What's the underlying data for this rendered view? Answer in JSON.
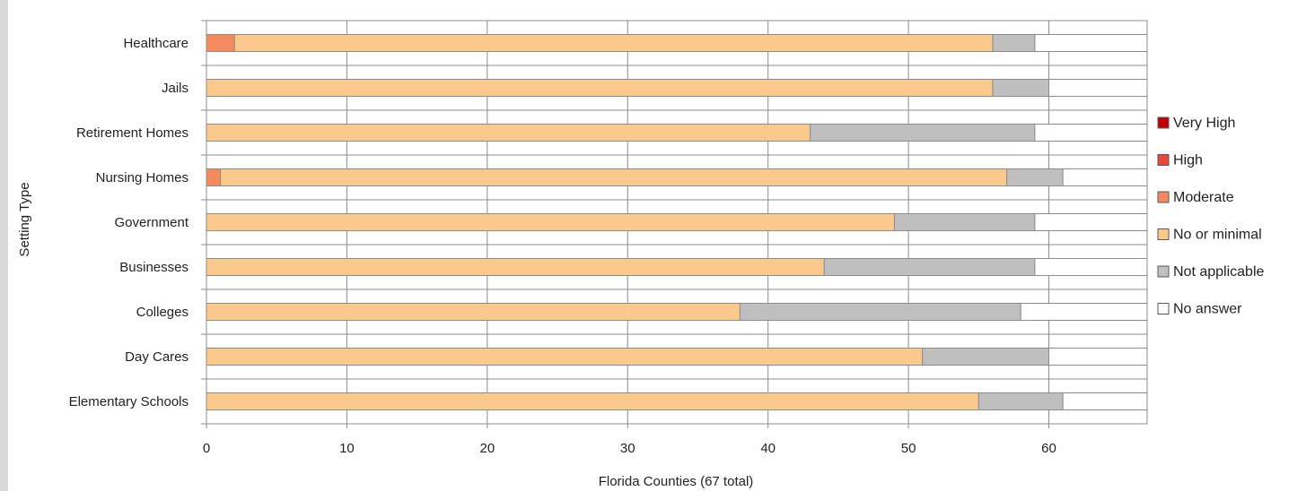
{
  "chart_data": {
    "type": "bar",
    "orientation": "horizontal",
    "stacked": true,
    "categories": [
      "Healthcare",
      "Jails",
      "Retirement Homes",
      "Nursing Homes",
      "Government",
      "Businesses",
      "Colleges",
      "Day Cares",
      "Elementary Schools"
    ],
    "series": [
      {
        "name": "Very High",
        "color": "#c00000",
        "values": [
          0,
          0,
          0,
          0,
          0,
          0,
          0,
          0,
          0
        ]
      },
      {
        "name": "High",
        "color": "#e8473a",
        "values": [
          0,
          0,
          0,
          0,
          0,
          0,
          0,
          0,
          0
        ]
      },
      {
        "name": "Moderate",
        "color": "#f58b5d",
        "values": [
          2,
          0,
          0,
          1,
          0,
          0,
          0,
          0,
          0
        ]
      },
      {
        "name": "No or minimal",
        "color": "#fbc98c",
        "values": [
          54,
          56,
          43,
          56,
          49,
          44,
          38,
          51,
          55
        ]
      },
      {
        "name": "Not applicable",
        "color": "#bfbfbf",
        "values": [
          3,
          4,
          16,
          4,
          10,
          15,
          20,
          9,
          6
        ]
      },
      {
        "name": "No answer",
        "color": "#ffffff",
        "values": [
          8,
          7,
          8,
          6,
          8,
          8,
          9,
          7,
          6
        ]
      }
    ],
    "xlabel": "Florida Counties (67 total)",
    "ylabel": "Setting Type",
    "xlim": [
      0,
      67
    ],
    "xticks": [
      0,
      10,
      20,
      30,
      40,
      50,
      60
    ],
    "grid": true,
    "legend_position": "right"
  }
}
